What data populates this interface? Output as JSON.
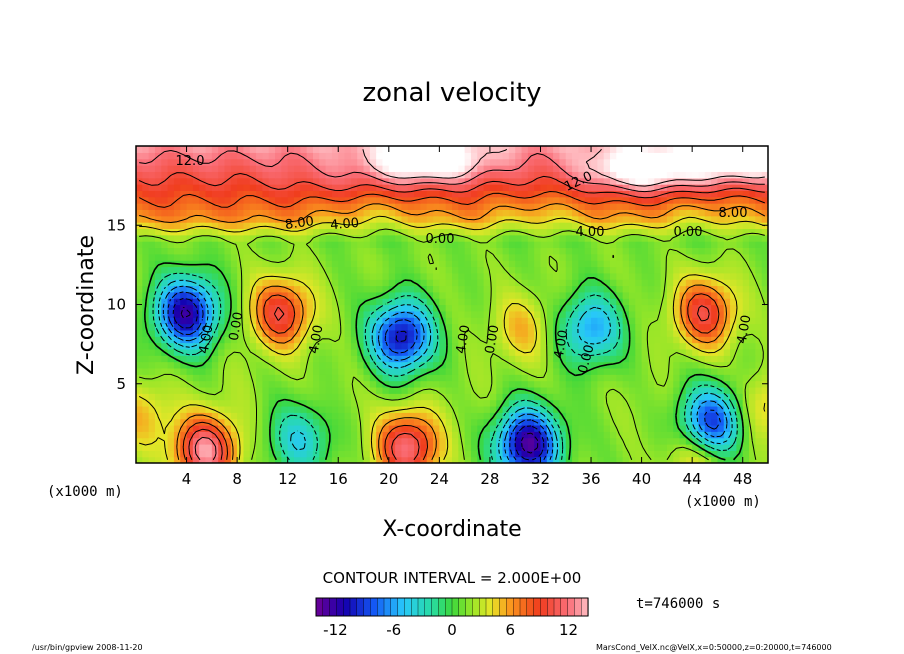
{
  "chart_data": {
    "type": "heatmap",
    "title": "zonal velocity",
    "xlabel": "X-coordinate",
    "ylabel": "Z-coordinate",
    "x_units": "(x1000 m)",
    "z_units": "(x1000 m)",
    "xlim": [
      0,
      50
    ],
    "ylim": [
      0,
      20
    ],
    "x_ticks": [
      "4",
      "8",
      "12",
      "16",
      "20",
      "24",
      "28",
      "32",
      "36",
      "40",
      "44",
      "48"
    ],
    "y_ticks": [
      "5",
      "10",
      "15"
    ],
    "contour_interval_label": "CONTOUR INTERVAL = 2.000E+00",
    "colorbar": {
      "min": -14,
      "max": 14,
      "ticks": [
        "-12",
        "-6",
        "0",
        "6",
        "12"
      ]
    },
    "time_label": "t=746000 s",
    "contour_labels": [
      "12.0",
      "12.0",
      "8.00",
      "4.00",
      "0.00",
      "4.00",
      "8.00",
      "0.00",
      "0.00",
      "4.00",
      "4.00",
      "0.00",
      "4.00",
      "0.00",
      "4.00",
      "4.00"
    ],
    "features": [
      {
        "x": 4,
        "z": 9.5,
        "value": -12
      },
      {
        "x": 11.5,
        "z": 9.5,
        "value": 10
      },
      {
        "x": 21,
        "z": 8,
        "value": -11
      },
      {
        "x": 30.5,
        "z": 8.5,
        "value": 5
      },
      {
        "x": 36,
        "z": 8.5,
        "value": -6
      },
      {
        "x": 45,
        "z": 9.5,
        "value": 10
      },
      {
        "x": 5.5,
        "z": 0.8,
        "value": 13
      },
      {
        "x": 21.5,
        "z": 1,
        "value": 12
      },
      {
        "x": 31,
        "z": 1.2,
        "value": -13
      },
      {
        "x": 13,
        "z": 1.5,
        "value": -4
      },
      {
        "x": 45.5,
        "z": 2.5,
        "value": -10
      },
      {
        "x": 44.5,
        "z": 0.5,
        "value": 6
      },
      {
        "x": 0.5,
        "z": 3,
        "value": 5
      },
      {
        "x": 49.8,
        "z": 3.5,
        "value": 5
      },
      {
        "x": 16,
        "z": 4,
        "value": 2
      },
      {
        "x": 8,
        "z": 5,
        "value": 2
      },
      {
        "x": 26,
        "z": 4,
        "value": 2
      },
      {
        "x": 40,
        "z": 4,
        "value": 2
      },
      {
        "x": 19,
        "z": 15.5,
        "value": 7
      },
      {
        "x": 32,
        "z": 15.5,
        "value": 7
      },
      {
        "x": 45,
        "z": 15.5,
        "value": 7
      },
      {
        "x": 23,
        "z": 19,
        "value": 16
      },
      {
        "x": 40,
        "z": 18.5,
        "value": 16
      },
      {
        "x": 48,
        "z": 19,
        "value": 15
      },
      {
        "x": 5,
        "z": 18,
        "value": 9
      },
      {
        "x": 15,
        "z": 18,
        "value": 10
      }
    ]
  },
  "footer": {
    "program": "/usr/bin/gpview  2008-11-20",
    "source": "MarsCond_VelX.nc@VelX,x=0:50000,z=0:20000,t=746000"
  }
}
